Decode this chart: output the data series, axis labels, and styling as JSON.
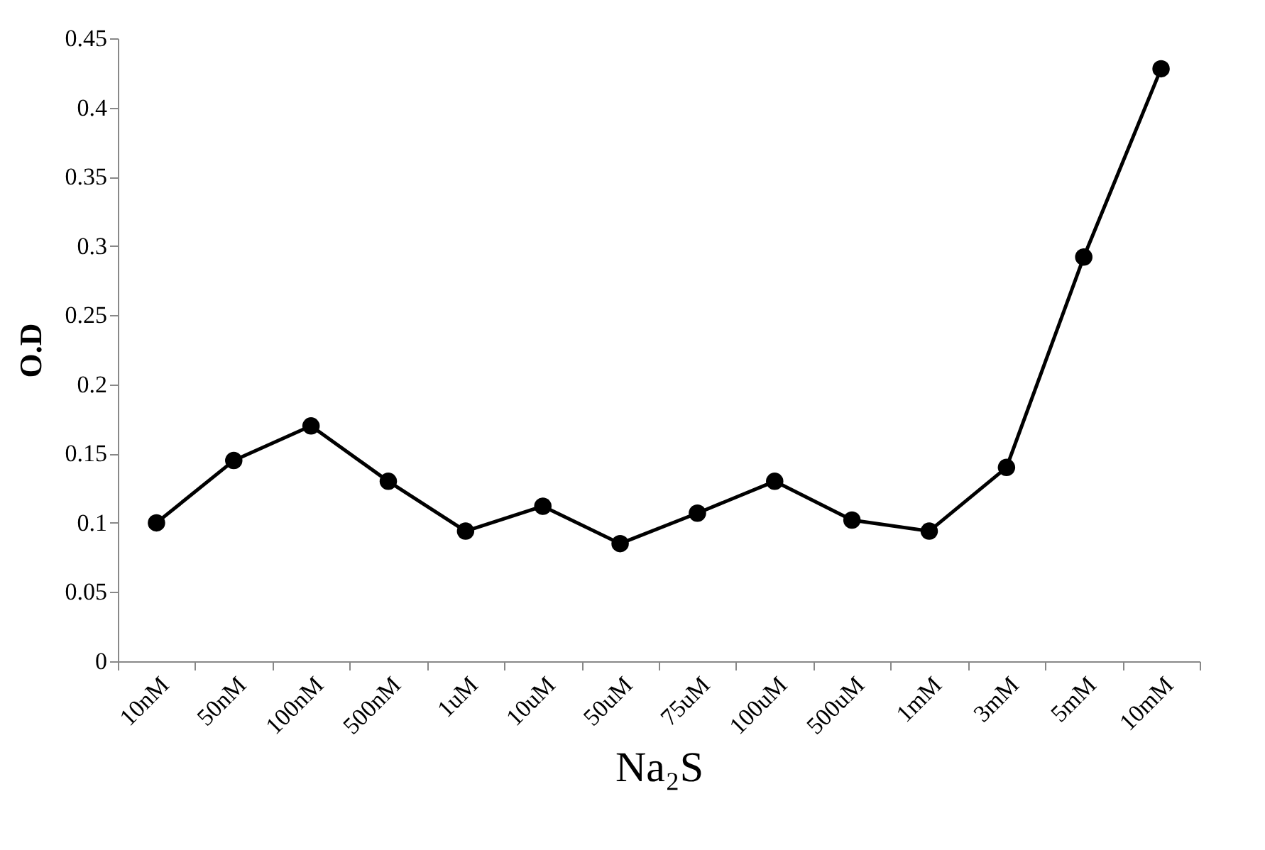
{
  "chart_data": {
    "type": "line",
    "xlabel": "Na₂S",
    "ylabel": "O.D",
    "categories": [
      "10nM",
      "50nM",
      "100nM",
      "500nM",
      "1uM",
      "10uM",
      "50uM",
      "75uM",
      "100uM",
      "500uM",
      "1mM",
      "3mM",
      "5mM",
      "10mM"
    ],
    "series": [
      {
        "color": "#000000",
        "values": [
          0.1,
          0.145,
          0.17,
          0.13,
          0.094,
          0.112,
          0.085,
          0.107,
          0.13,
          0.102,
          0.094,
          0.14,
          0.292,
          0.428
        ]
      }
    ],
    "ylim": [
      0,
      0.45
    ],
    "yticks": [
      0,
      0.05,
      0.1,
      0.15,
      0.2,
      0.25,
      0.3,
      0.35,
      0.4,
      0.45
    ],
    "grid": false,
    "marker": "circle",
    "line_style": "solid"
  }
}
